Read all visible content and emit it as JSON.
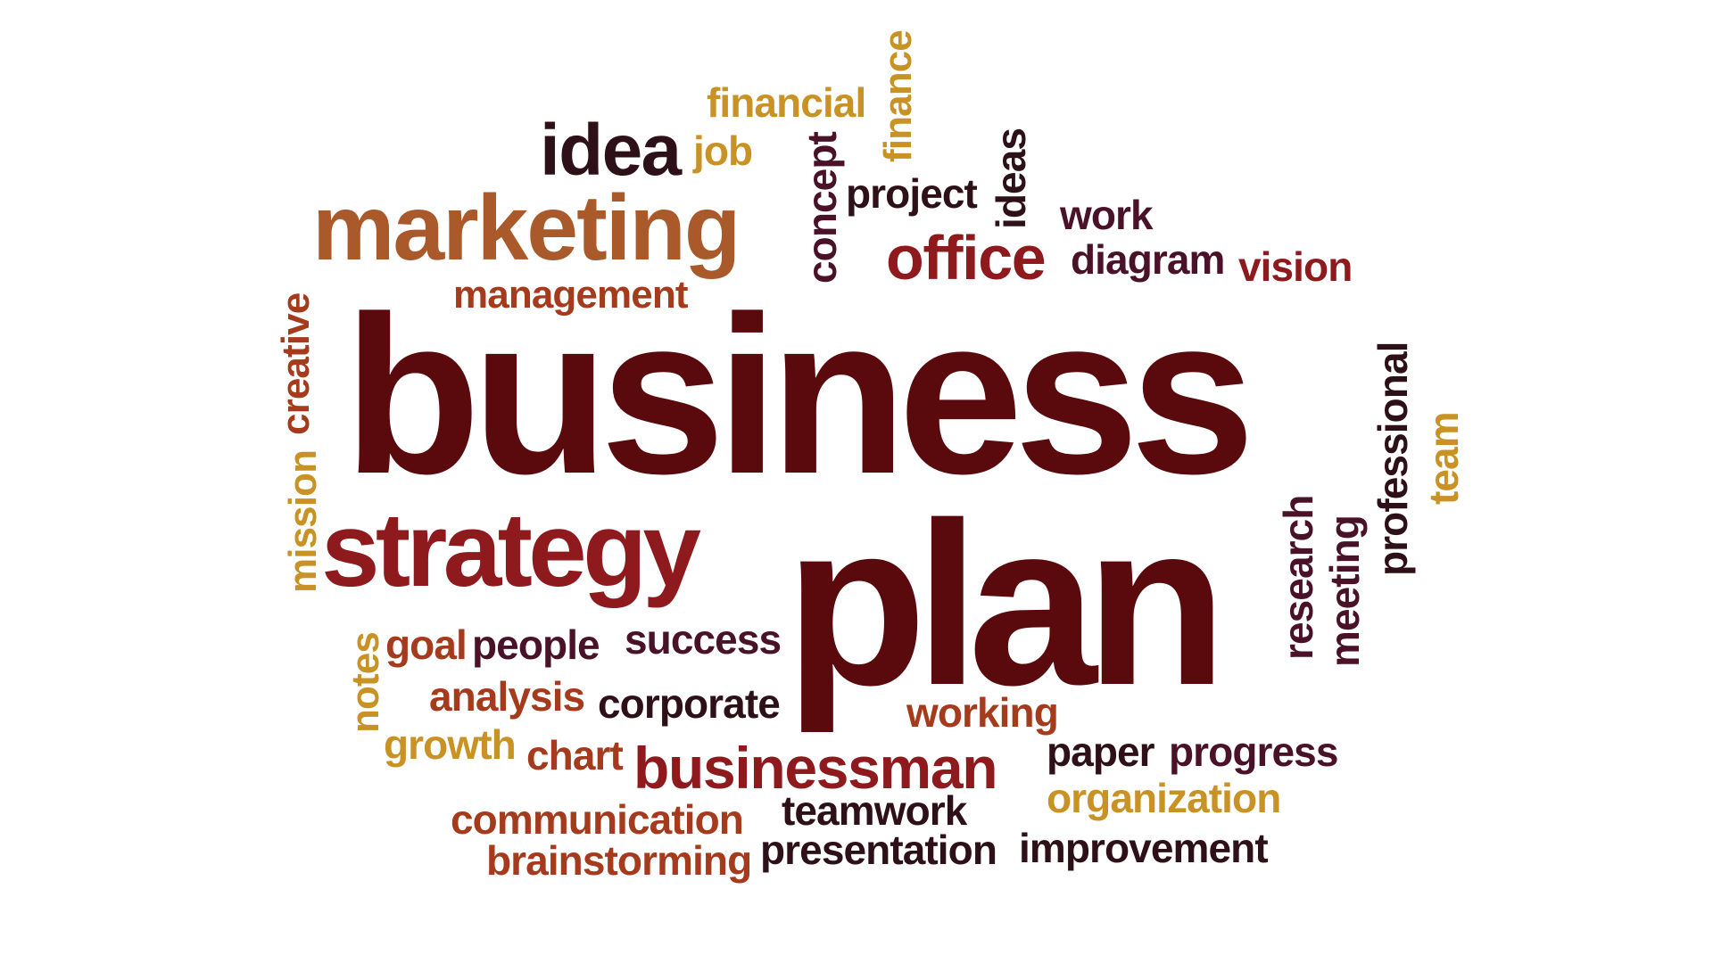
{
  "colors": {
    "maroon": "#5a0a0d",
    "red": "#8e1a1e",
    "rust": "#a53a1c",
    "copper": "#a9592a",
    "gold": "#c89225",
    "dark": "#2d1018",
    "plum": "#4a1228"
  },
  "words": {
    "financial": "financial",
    "finance": "finance",
    "idea": "idea",
    "job": "job",
    "concept": "concept",
    "project": "project",
    "ideas": "ideas",
    "work": "work",
    "marketing": "marketing",
    "office": "office",
    "diagram": "diagram",
    "vision": "vision",
    "management": "management",
    "creative": "creative",
    "business": "business",
    "professional": "professional",
    "team": "team",
    "mission": "mission",
    "strategy": "strategy",
    "plan": "plan",
    "research": "research",
    "meeting": "meeting",
    "notes": "notes",
    "goal": "goal",
    "people": "people",
    "success": "success",
    "analysis": "analysis",
    "corporate": "corporate",
    "working": "working",
    "growth": "growth",
    "chart": "chart",
    "businessman": "businessman",
    "paper": "paper",
    "progress": "progress",
    "organization": "organization",
    "communication": "communication",
    "teamwork": "teamwork",
    "brainstorming": "brainstorming",
    "presentation": "presentation",
    "improvement": "improvement"
  }
}
